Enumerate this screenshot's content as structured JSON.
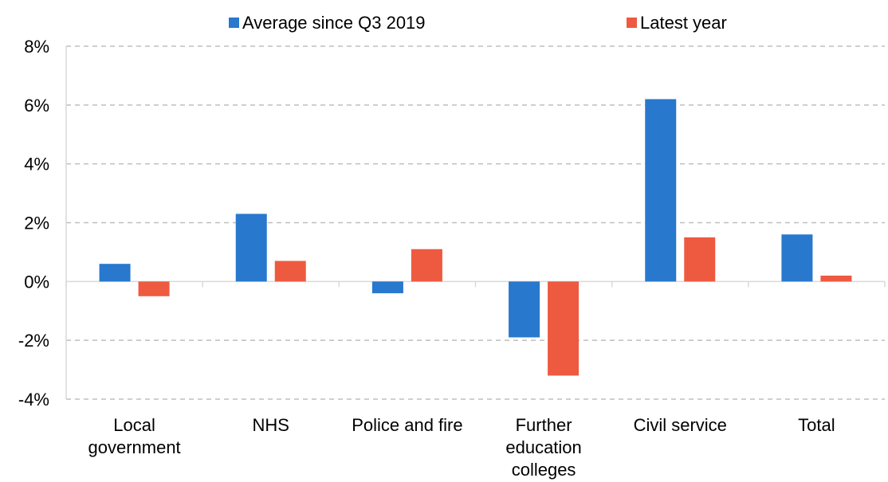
{
  "chart_data": {
    "type": "bar",
    "title": "",
    "xlabel": "",
    "ylabel": "",
    "categories": [
      [
        "Local",
        "government"
      ],
      [
        "NHS"
      ],
      [
        "Police and fire"
      ],
      [
        "Further",
        "education",
        "colleges"
      ],
      [
        "Civil service"
      ],
      [
        "Total"
      ]
    ],
    "series": [
      {
        "name": "Average since Q3 2019",
        "color": "#2878CD",
        "values": [
          0.6,
          2.3,
          -0.4,
          -1.9,
          6.2,
          1.6
        ]
      },
      {
        "name": "Latest year",
        "color": "#EE5A3F",
        "values": [
          -0.5,
          0.7,
          1.1,
          -3.2,
          1.5,
          0.2
        ]
      }
    ],
    "ylim": [
      -4,
      8
    ],
    "yticks": [
      8,
      6,
      4,
      2,
      0,
      -2,
      -4
    ],
    "ytick_labels": [
      "8%",
      "6%",
      "4%",
      "2%",
      "0%",
      "-2%",
      "-4%"
    ],
    "grid": true,
    "legend_position": "top"
  }
}
